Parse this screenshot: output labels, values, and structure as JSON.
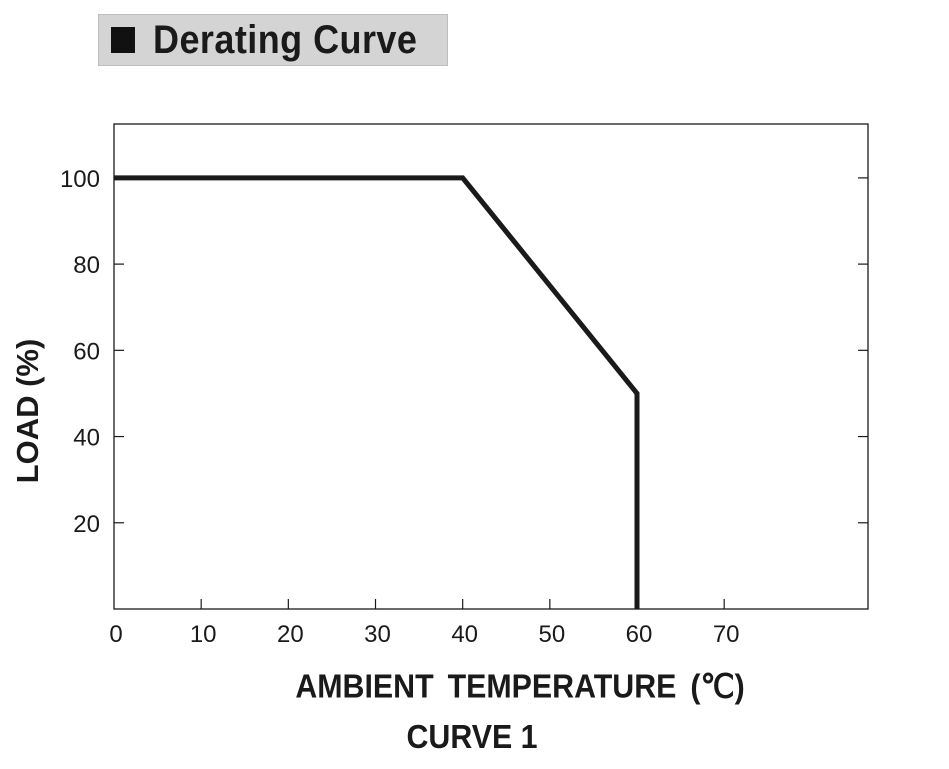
{
  "header": {
    "title": "Derating Curve"
  },
  "chart_data": {
    "type": "line",
    "title": "Derating Curve",
    "xlabel": "AMBIENT  TEMPERATURE (℃)",
    "ylabel": "LOAD (%)",
    "caption": "CURVE 1",
    "xlim": [
      0,
      86.5
    ],
    "ylim": [
      0,
      112.5
    ],
    "x_ticks": [
      "0",
      "10",
      "20",
      "30",
      "40",
      "50",
      "60",
      "70"
    ],
    "x_tick_values": [
      0,
      10,
      20,
      30,
      40,
      50,
      60,
      70
    ],
    "y_ticks": [
      "20",
      "40",
      "60",
      "80",
      "100"
    ],
    "y_tick_values": [
      20,
      40,
      60,
      80,
      100
    ],
    "grid": false,
    "series": [
      {
        "x": [
          0,
          40,
          60,
          60
        ],
        "y": [
          100,
          100,
          50,
          0
        ]
      }
    ],
    "line_color": "#1a1a1a"
  }
}
